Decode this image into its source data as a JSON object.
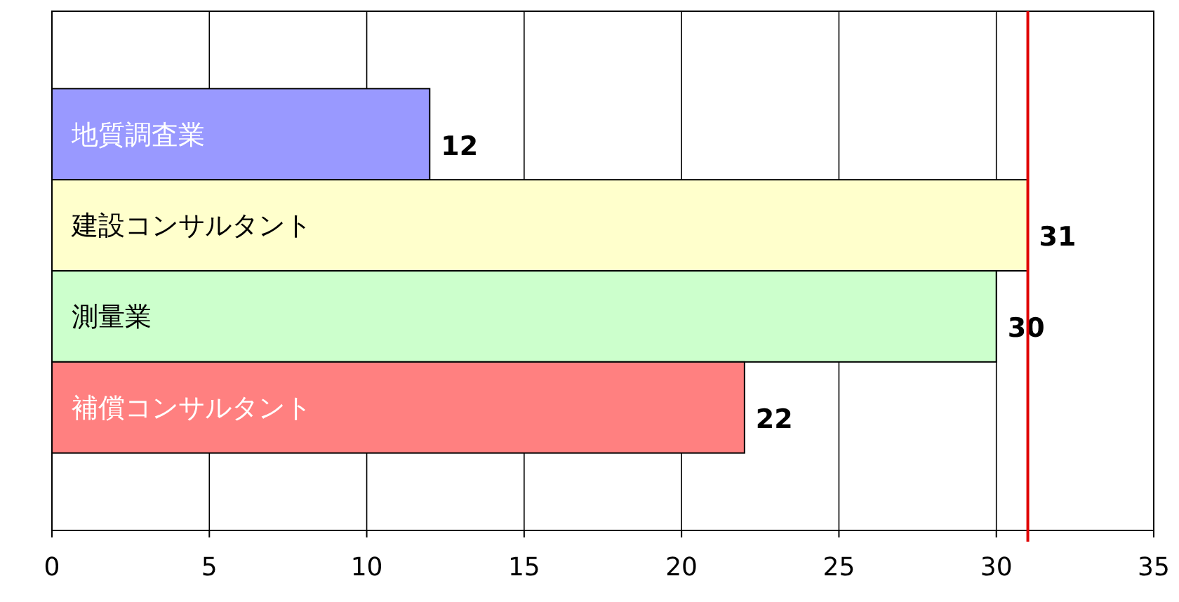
{
  "chart_data": {
    "type": "bar",
    "orientation": "horizontal",
    "categories": [
      "地質調査業",
      "建設コンサルタント",
      "測量業",
      "補償コンサルタント"
    ],
    "values": [
      12,
      31,
      30,
      22
    ],
    "colors": [
      "#9999ff",
      "#ffffcc",
      "#ccffcc",
      "#ff8080"
    ],
    "xlim": [
      0,
      35
    ],
    "xticks": [
      0,
      5,
      10,
      15,
      20,
      25,
      30,
      35
    ],
    "grid": "x",
    "data_labels": true,
    "ref_lines": [
      {
        "axis": "x",
        "value": 31,
        "color": "#e00000"
      }
    ]
  }
}
